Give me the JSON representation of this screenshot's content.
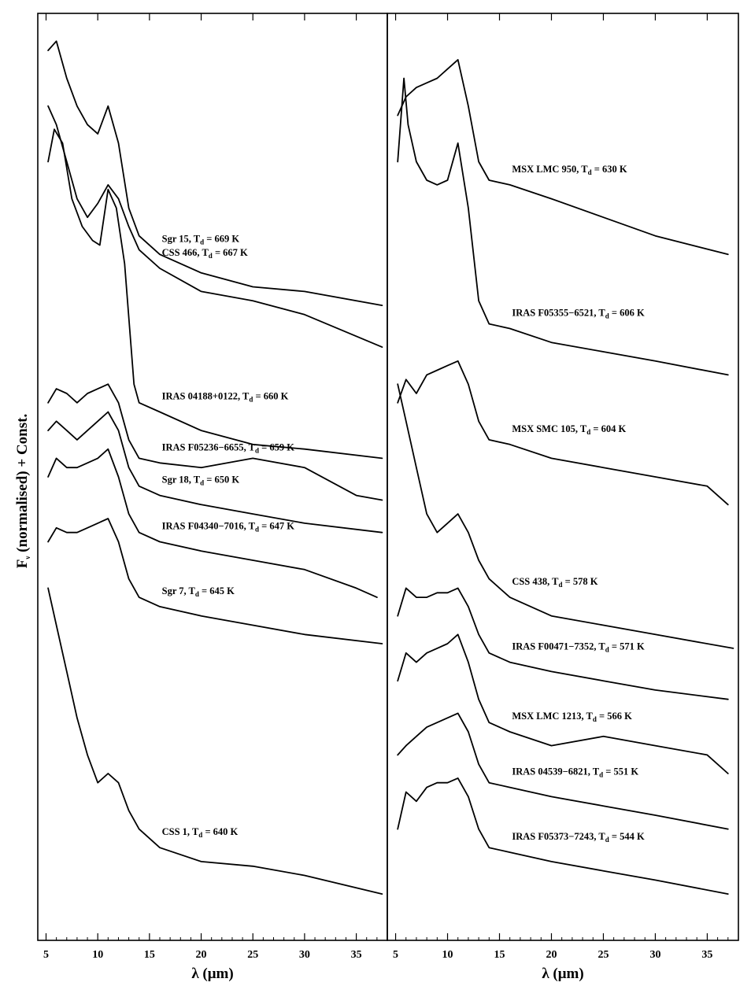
{
  "figure": {
    "ylabel_main": "F",
    "ylabel_sub": "ν",
    "ylabel_rest": " (normalised) + Const."
  },
  "chart_data": [
    {
      "type": "line",
      "panel": "left",
      "xlabel": "λ (μm)",
      "xlim": [
        4.2,
        38
      ],
      "xticks": [
        5,
        10,
        15,
        20,
        25,
        30,
        35
      ],
      "grid": false,
      "series": [
        {
          "name": "Sgr 15",
          "Td": "669 K",
          "x": [
            5.2,
            6,
            7,
            8,
            9,
            10,
            11,
            12,
            13,
            14,
            16,
            20,
            25,
            30,
            37.5
          ],
          "y": [
            0.96,
            0.97,
            0.93,
            0.9,
            0.88,
            0.87,
            0.9,
            0.86,
            0.79,
            0.76,
            0.74,
            0.72,
            0.705,
            0.7,
            0.685
          ]
        },
        {
          "name": "CSS 466",
          "Td": "667 K",
          "x": [
            5.2,
            6,
            7,
            8,
            9,
            10,
            11,
            12,
            13,
            14,
            16,
            20,
            25,
            30,
            37.5
          ],
          "y": [
            0.9,
            0.88,
            0.84,
            0.8,
            0.78,
            0.795,
            0.815,
            0.8,
            0.77,
            0.745,
            0.725,
            0.7,
            0.69,
            0.675,
            0.64
          ]
        },
        {
          "name": "IRAS 04188+0122",
          "Td": "660 K",
          "x": [
            5.2,
            5.8,
            6.6,
            7.5,
            8.5,
            9.5,
            10.2,
            11,
            11.8,
            12.6,
            13.5,
            14,
            16,
            20,
            25,
            30,
            37.5
          ],
          "y": [
            0.84,
            0.875,
            0.86,
            0.8,
            0.77,
            0.755,
            0.75,
            0.81,
            0.79,
            0.73,
            0.6,
            0.58,
            0.57,
            0.55,
            0.535,
            0.53,
            0.52
          ]
        },
        {
          "name": "IRAS F05236−6655",
          "Td": "659 K",
          "x": [
            5.2,
            6,
            7,
            8,
            9,
            10,
            11,
            12,
            13,
            14,
            16,
            20,
            25,
            30,
            35,
            37.5
          ],
          "y": [
            0.58,
            0.595,
            0.59,
            0.58,
            0.59,
            0.595,
            0.6,
            0.58,
            0.54,
            0.52,
            0.515,
            0.51,
            0.52,
            0.51,
            0.48,
            0.475
          ]
        },
        {
          "name": "Sgr 18",
          "Td": "650 K",
          "x": [
            5.2,
            6,
            7,
            8,
            9,
            10,
            11,
            12,
            13,
            14,
            16,
            20,
            25,
            30,
            37.5
          ],
          "y": [
            0.55,
            0.56,
            0.55,
            0.54,
            0.55,
            0.56,
            0.57,
            0.55,
            0.51,
            0.49,
            0.48,
            0.47,
            0.46,
            0.45,
            0.44
          ]
        },
        {
          "name": "IRAS F04340−7016",
          "Td": "647 K",
          "x": [
            5.2,
            6,
            7,
            8,
            9,
            10,
            11,
            12,
            13,
            14,
            16,
            20,
            25,
            30,
            35,
            37
          ],
          "y": [
            0.5,
            0.52,
            0.51,
            0.51,
            0.515,
            0.52,
            0.53,
            0.5,
            0.46,
            0.44,
            0.43,
            0.42,
            0.41,
            0.4,
            0.38,
            0.37
          ]
        },
        {
          "name": "Sgr 7",
          "Td": "645 K",
          "x": [
            5.2,
            6,
            7,
            8,
            9,
            10,
            11,
            12,
            13,
            14,
            16,
            20,
            25,
            30,
            37.5
          ],
          "y": [
            0.43,
            0.445,
            0.44,
            0.44,
            0.445,
            0.45,
            0.455,
            0.43,
            0.39,
            0.37,
            0.36,
            0.35,
            0.34,
            0.33,
            0.32
          ]
        },
        {
          "name": "CSS 1",
          "Td": "640 K",
          "x": [
            5.2,
            6,
            7,
            8,
            9,
            10,
            11,
            12,
            13,
            14,
            16,
            20,
            25,
            30,
            37.5
          ],
          "y": [
            0.38,
            0.34,
            0.29,
            0.24,
            0.2,
            0.17,
            0.18,
            0.17,
            0.14,
            0.12,
            0.1,
            0.085,
            0.08,
            0.07,
            0.05
          ]
        }
      ]
    },
    {
      "type": "line",
      "panel": "right",
      "xlabel": "λ (μm)",
      "xlim": [
        4.2,
        38
      ],
      "xticks": [
        5,
        10,
        15,
        20,
        25,
        30,
        35
      ],
      "grid": false,
      "series": [
        {
          "name": "MSX LMC 950",
          "Td": "630 K",
          "x": [
            5.2,
            6,
            7,
            8,
            9,
            10,
            11,
            12,
            13,
            14,
            16,
            20,
            25,
            30,
            37
          ],
          "y": [
            0.89,
            0.91,
            0.92,
            0.925,
            0.93,
            0.94,
            0.95,
            0.9,
            0.84,
            0.82,
            0.815,
            0.8,
            0.78,
            0.76,
            0.74
          ]
        },
        {
          "name": "IRAS F05355−6521",
          "Td": "606 K",
          "x": [
            5.2,
            5.8,
            6.2,
            7,
            8,
            9,
            10,
            11,
            12,
            13,
            14,
            16,
            20,
            25,
            30,
            37
          ],
          "y": [
            0.84,
            0.93,
            0.88,
            0.84,
            0.82,
            0.815,
            0.82,
            0.86,
            0.79,
            0.69,
            0.665,
            0.66,
            0.645,
            0.635,
            0.625,
            0.61
          ]
        },
        {
          "name": "MSX SMC 105",
          "Td": "604 K",
          "x": [
            5.2,
            6,
            7,
            8,
            9,
            10,
            11,
            12,
            13,
            14,
            16,
            20,
            25,
            30,
            35,
            37
          ],
          "y": [
            0.58,
            0.605,
            0.59,
            0.61,
            0.615,
            0.62,
            0.625,
            0.6,
            0.56,
            0.54,
            0.535,
            0.52,
            0.51,
            0.5,
            0.49,
            0.47
          ]
        },
        {
          "name": "CSS 438",
          "Td": "578 K",
          "x": [
            5.2,
            6,
            7,
            8,
            9,
            10,
            11,
            12,
            13,
            14,
            16,
            20,
            25,
            30,
            37.5
          ],
          "y": [
            0.6,
            0.56,
            0.51,
            0.46,
            0.44,
            0.45,
            0.46,
            0.44,
            0.41,
            0.39,
            0.37,
            0.35,
            0.34,
            0.33,
            0.315
          ]
        },
        {
          "name": "IRAS F00471−7352",
          "Td": "571 K",
          "x": [
            5.2,
            6,
            7,
            8,
            9,
            10,
            11,
            12,
            13,
            14,
            16,
            20,
            25,
            30,
            37
          ],
          "y": [
            0.35,
            0.38,
            0.37,
            0.37,
            0.375,
            0.375,
            0.38,
            0.36,
            0.33,
            0.31,
            0.3,
            0.29,
            0.28,
            0.27,
            0.26
          ]
        },
        {
          "name": "MSX LMC 1213",
          "Td": "566 K",
          "x": [
            5.2,
            6,
            7,
            8,
            9,
            10,
            11,
            12,
            13,
            14,
            16,
            20,
            25,
            30,
            35,
            37
          ],
          "y": [
            0.28,
            0.31,
            0.3,
            0.31,
            0.315,
            0.32,
            0.33,
            0.3,
            0.26,
            0.235,
            0.225,
            0.21,
            0.22,
            0.21,
            0.2,
            0.18
          ]
        },
        {
          "name": "IRAS 04539−6821",
          "Td": "551 K",
          "x": [
            5.2,
            6,
            7,
            8,
            9,
            10,
            11,
            12,
            13,
            14,
            16,
            20,
            25,
            30,
            37
          ],
          "y": [
            0.2,
            0.21,
            0.22,
            0.23,
            0.235,
            0.24,
            0.245,
            0.225,
            0.19,
            0.17,
            0.165,
            0.155,
            0.145,
            0.135,
            0.12
          ]
        },
        {
          "name": "IRAS F05373−7243",
          "Td": "544 K",
          "x": [
            5.2,
            6,
            7,
            8,
            9,
            10,
            11,
            12,
            13,
            14,
            16,
            20,
            25,
            30,
            37
          ],
          "y": [
            0.12,
            0.16,
            0.15,
            0.165,
            0.17,
            0.17,
            0.175,
            0.155,
            0.12,
            0.1,
            0.095,
            0.085,
            0.075,
            0.065,
            0.05
          ]
        }
      ]
    }
  ]
}
